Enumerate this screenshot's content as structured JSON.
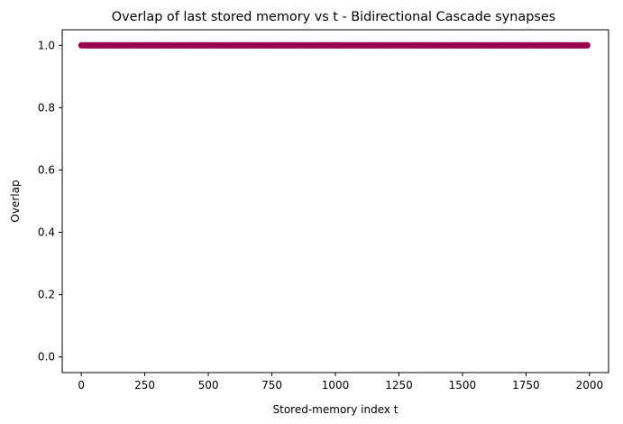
{
  "chart_data": {
    "type": "scatter",
    "title": "Overlap of last stored memory vs t  - Bidirectional Cascade synapses",
    "xlabel": "Stored-memory index t",
    "ylabel": "Overlap",
    "xlim": [
      -75,
      2075
    ],
    "ylim": [
      -0.05,
      1.05
    ],
    "xticks": [
      0,
      250,
      500,
      750,
      1000,
      1250,
      1500,
      1750,
      2000
    ],
    "yticks": [
      0.0,
      0.2,
      0.4,
      0.6,
      0.8,
      1.0
    ],
    "xtick_labels": [
      "0",
      "250",
      "500",
      "750",
      "1000",
      "1250",
      "1500",
      "1750",
      "2000"
    ],
    "ytick_labels": [
      "0.0",
      "0.2",
      "0.4",
      "0.6",
      "0.8",
      "1.0"
    ],
    "series": [
      {
        "name": "overlap",
        "color": "#99004d",
        "x_start": 1,
        "x_end": 2000,
        "x_step": 10,
        "y_constant": 1.0
      }
    ],
    "grid": false,
    "legend": "none"
  }
}
